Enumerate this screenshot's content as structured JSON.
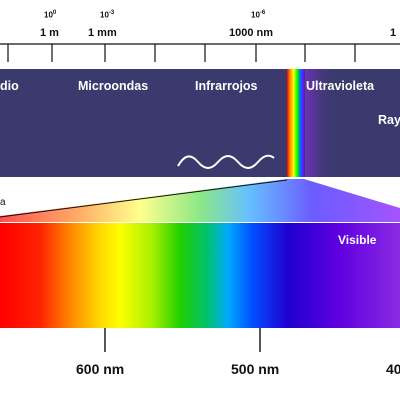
{
  "colors": {
    "band": "#3a3a6e",
    "lineInk": "#111111",
    "visibleLabel": "#ffffff"
  },
  "top_scale": {
    "exponents": [
      {
        "base": "10",
        "sup": "0"
      },
      {
        "base": "10",
        "sup": "-3"
      },
      {
        "base": "10",
        "sup": "-6"
      }
    ],
    "lengths": [
      "1 m",
      "1 mm",
      "1000 nm",
      "1"
    ]
  },
  "bands": [
    "dio",
    "Microondas",
    "Infrarrojos",
    "Ultravioleta",
    "Ray"
  ],
  "edge_letter": "a",
  "visible_label": "Visible",
  "bottom_scale": [
    "600 nm",
    "500 nm",
    "40"
  ]
}
